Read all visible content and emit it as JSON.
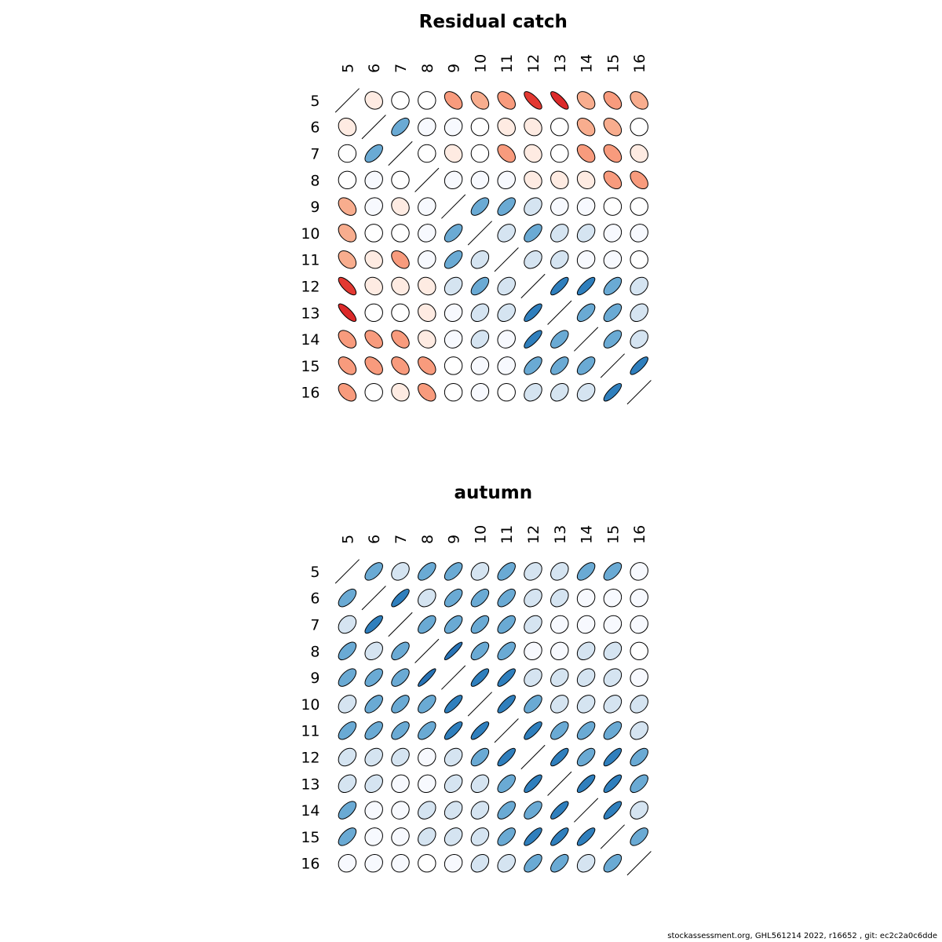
{
  "footer": {
    "text": "stockassessment.org, GHL561214  2022, r16652 , git: ec2c2a0c6dde"
  },
  "chart_data": [
    {
      "type": "heatmap",
      "subtype": "correlation-ellipse-matrix",
      "title": "Residual catch",
      "labels": [
        "5",
        "6",
        "7",
        "8",
        "9",
        "10",
        "11",
        "12",
        "13",
        "14",
        "15",
        "16"
      ],
      "color_scale": {
        "negative": "#b2182b",
        "zero": "#ffffff",
        "positive": "#2166ac"
      },
      "matrix": [
        [
          1.0,
          -0.15,
          0.0,
          0.0,
          -0.45,
          -0.4,
          -0.45,
          -0.75,
          -0.8,
          -0.4,
          -0.45,
          -0.4
        ],
        [
          -0.15,
          1.0,
          0.6,
          0.1,
          0.1,
          0.0,
          -0.15,
          -0.15,
          0.0,
          -0.4,
          -0.4,
          0.0
        ],
        [
          0.0,
          0.6,
          1.0,
          0.0,
          -0.15,
          0.0,
          -0.45,
          -0.15,
          0.0,
          -0.45,
          -0.45,
          -0.15
        ],
        [
          0.0,
          0.1,
          0.0,
          1.0,
          0.1,
          0.1,
          0.1,
          -0.15,
          -0.15,
          -0.15,
          -0.45,
          -0.45
        ],
        [
          -0.4,
          0.1,
          -0.15,
          0.1,
          1.0,
          0.6,
          0.6,
          0.3,
          0.1,
          0.1,
          0.0,
          0.0
        ],
        [
          -0.4,
          0.0,
          0.0,
          0.1,
          0.6,
          1.0,
          0.3,
          0.6,
          0.3,
          0.3,
          0.1,
          0.1
        ],
        [
          -0.4,
          -0.15,
          -0.45,
          0.1,
          0.6,
          0.3,
          1.0,
          0.3,
          0.3,
          0.1,
          0.1,
          0.0
        ],
        [
          -0.75,
          -0.15,
          -0.15,
          -0.15,
          0.3,
          0.6,
          0.3,
          1.0,
          0.8,
          0.8,
          0.6,
          0.3
        ],
        [
          -0.8,
          0.0,
          0.0,
          -0.15,
          0.1,
          0.3,
          0.3,
          0.8,
          1.0,
          0.6,
          0.6,
          0.3
        ],
        [
          -0.45,
          -0.45,
          -0.45,
          -0.15,
          0.1,
          0.3,
          0.1,
          0.8,
          0.6,
          1.0,
          0.6,
          0.3
        ],
        [
          -0.45,
          -0.45,
          -0.45,
          -0.45,
          0.0,
          0.1,
          0.1,
          0.6,
          0.6,
          0.6,
          1.0,
          0.8
        ],
        [
          -0.45,
          0.0,
          -0.15,
          -0.45,
          0.0,
          0.1,
          0.0,
          0.3,
          0.3,
          0.3,
          0.8,
          1.0
        ]
      ]
    },
    {
      "type": "heatmap",
      "subtype": "correlation-ellipse-matrix",
      "title": "autumn",
      "labels": [
        "5",
        "6",
        "7",
        "8",
        "9",
        "10",
        "11",
        "12",
        "13",
        "14",
        "15",
        "16"
      ],
      "color_scale": {
        "negative": "#b2182b",
        "zero": "#ffffff",
        "positive": "#2166ac"
      },
      "matrix": [
        [
          1.0,
          0.6,
          0.3,
          0.6,
          0.6,
          0.3,
          0.6,
          0.3,
          0.3,
          0.6,
          0.6,
          0.1
        ],
        [
          0.6,
          1.0,
          0.8,
          0.3,
          0.6,
          0.6,
          0.6,
          0.3,
          0.3,
          0.1,
          0.1,
          0.1
        ],
        [
          0.3,
          0.8,
          1.0,
          0.6,
          0.6,
          0.6,
          0.6,
          0.3,
          0.1,
          0.1,
          0.1,
          0.1
        ],
        [
          0.6,
          0.3,
          0.6,
          1.0,
          0.9,
          0.6,
          0.6,
          0.1,
          0.1,
          0.3,
          0.3,
          0.0
        ],
        [
          0.6,
          0.6,
          0.6,
          0.9,
          1.0,
          0.8,
          0.8,
          0.3,
          0.3,
          0.3,
          0.3,
          0.1
        ],
        [
          0.3,
          0.6,
          0.6,
          0.6,
          0.8,
          1.0,
          0.8,
          0.6,
          0.3,
          0.3,
          0.3,
          0.3
        ],
        [
          0.6,
          0.6,
          0.6,
          0.6,
          0.8,
          0.8,
          1.0,
          0.8,
          0.6,
          0.6,
          0.6,
          0.3
        ],
        [
          0.3,
          0.3,
          0.3,
          0.1,
          0.3,
          0.6,
          0.8,
          1.0,
          0.8,
          0.6,
          0.8,
          0.6
        ],
        [
          0.3,
          0.3,
          0.1,
          0.1,
          0.3,
          0.3,
          0.6,
          0.8,
          1.0,
          0.8,
          0.8,
          0.6
        ],
        [
          0.6,
          0.1,
          0.1,
          0.3,
          0.3,
          0.3,
          0.6,
          0.6,
          0.8,
          1.0,
          0.8,
          0.3
        ],
        [
          0.6,
          0.1,
          0.1,
          0.3,
          0.3,
          0.3,
          0.6,
          0.8,
          0.8,
          0.8,
          1.0,
          0.6
        ],
        [
          0.1,
          0.1,
          0.1,
          0.0,
          0.1,
          0.3,
          0.3,
          0.6,
          0.6,
          0.3,
          0.6,
          1.0
        ]
      ]
    }
  ]
}
